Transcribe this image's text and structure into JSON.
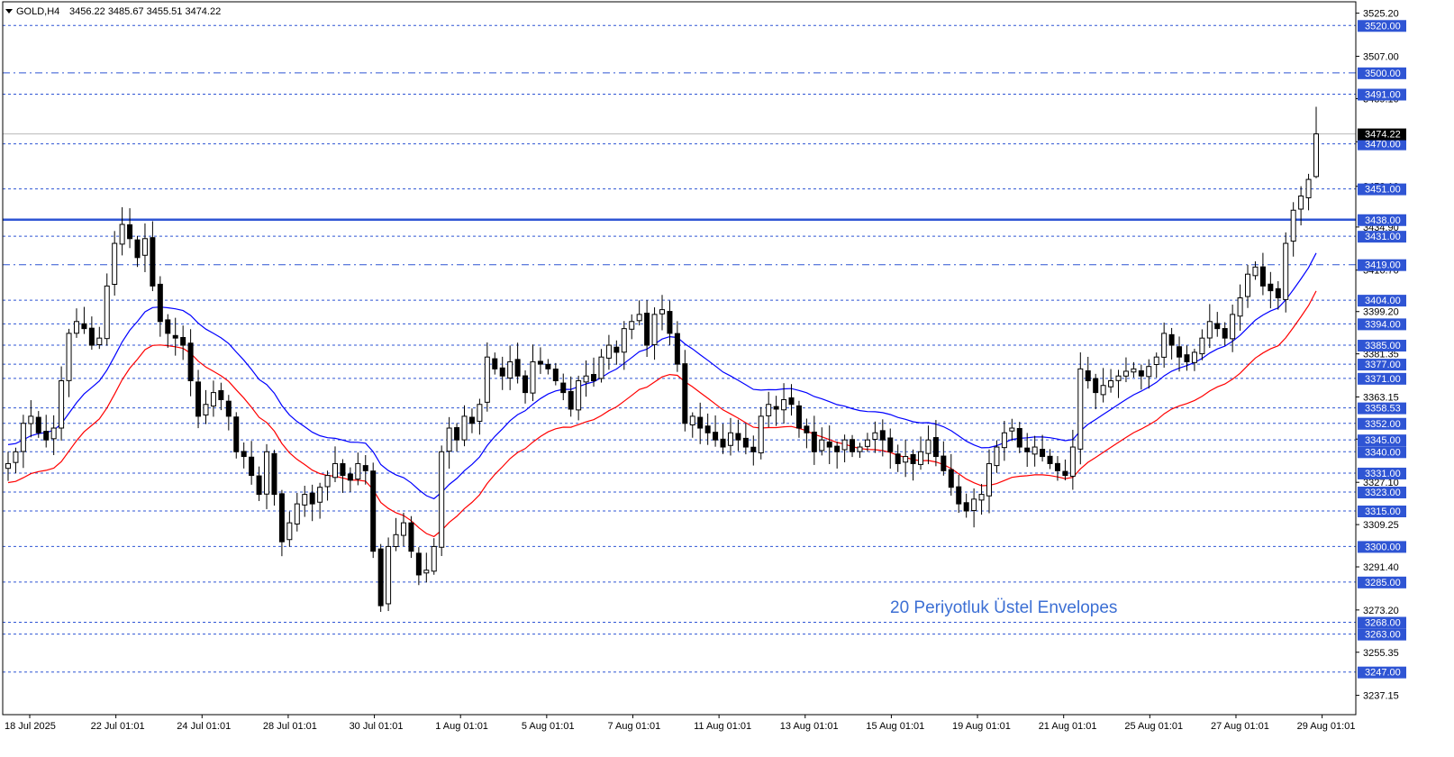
{
  "header": {
    "symbol_label": "GOLD,H4",
    "ohlc_label": "3456.22 3485.67 3455.51 3474.22"
  },
  "annotation": {
    "text": "20 Periyotluk Üstel Envelopes",
    "color": "#3c6fd4"
  },
  "colors": {
    "level_line": "#2f55d4",
    "upper_envelope": "#0000ff",
    "lower_envelope": "#ff0000",
    "candle": "#000000",
    "tag_bg": "#2f55d4",
    "price_tag_bg": "#000000"
  },
  "chart_data": {
    "type": "candlestick",
    "symbol": "GOLD",
    "timeframe": "H4",
    "ylim": [
      3229,
      3530
    ],
    "current_price": 3474.22,
    "y_axis_ticks": [
      "3525.20",
      "3507.00",
      "3489.10",
      "3470.90",
      "3452.10",
      "3434.90",
      "3416.70",
      "3399.20",
      "3381.35",
      "3363.15",
      "3345.35",
      "3327.10",
      "3309.25",
      "3291.40",
      "3273.20",
      "3255.35",
      "3237.15"
    ],
    "x_axis_labels": [
      "18 Jul 2025",
      "22 Jul 01:01",
      "24 Jul 01:01",
      "28 Jul 01:01",
      "30 Jul 01:01",
      "1 Aug 01:01",
      "5 Aug 01:01",
      "7 Aug 01:01",
      "11 Aug 01:01",
      "13 Aug 01:01",
      "15 Aug 01:01",
      "19 Aug 01:01",
      "21 Aug 01:01",
      "25 Aug 01:01",
      "27 Aug 01:01",
      "29 Aug 01:01"
    ],
    "levels": [
      {
        "label": "3520.00",
        "value": 3520.0,
        "style": "dashed"
      },
      {
        "label": "3500.00",
        "value": 3500.0,
        "style": "dashdot"
      },
      {
        "label": "3491.00",
        "value": 3491.0,
        "style": "dashed"
      },
      {
        "label": "3470.00",
        "value": 3470.0,
        "style": "dashed"
      },
      {
        "label": "3451.00",
        "value": 3451.0,
        "style": "dashed"
      },
      {
        "label": "3438.00",
        "value": 3438.0,
        "style": "solid"
      },
      {
        "label": "3431.00",
        "value": 3431.0,
        "style": "dashed"
      },
      {
        "label": "3419.00",
        "value": 3419.0,
        "style": "dashdot"
      },
      {
        "label": "3404.00",
        "value": 3404.0,
        "style": "dashed"
      },
      {
        "label": "3394.00",
        "value": 3394.0,
        "style": "dashed"
      },
      {
        "label": "3385.00",
        "value": 3385.0,
        "style": "dashed"
      },
      {
        "label": "3377.00",
        "value": 3377.0,
        "style": "dashed"
      },
      {
        "label": "3371.00",
        "value": 3371.0,
        "style": "dashed"
      },
      {
        "label": "3358.53",
        "value": 3358.53,
        "style": "dashed"
      },
      {
        "label": "3352.00",
        "value": 3352.0,
        "style": "dashed"
      },
      {
        "label": "3345.00",
        "value": 3345.0,
        "style": "dashed"
      },
      {
        "label": "3340.00",
        "value": 3340.0,
        "style": "dashed"
      },
      {
        "label": "3331.00",
        "value": 3331.0,
        "style": "dashed"
      },
      {
        "label": "3323.00",
        "value": 3323.0,
        "style": "dashed"
      },
      {
        "label": "3315.00",
        "value": 3315.0,
        "style": "dashed"
      },
      {
        "label": "3300.00",
        "value": 3300.0,
        "style": "dashed"
      },
      {
        "label": "3285.00",
        "value": 3285.0,
        "style": "dashed"
      },
      {
        "label": "3268.00",
        "value": 3268.0,
        "style": "dashed"
      },
      {
        "label": "3263.00",
        "value": 3263.0,
        "style": "dashed"
      },
      {
        "label": "3247.00",
        "value": 3247.0,
        "style": "dashed"
      }
    ],
    "closes": [
      3335,
      3340,
      3352,
      3355,
      3348,
      3345,
      3350,
      3370,
      3390,
      3395,
      3392,
      3385,
      3388,
      3410,
      3428,
      3436,
      3430,
      3422,
      3430,
      3410,
      3395,
      3390,
      3388,
      3385,
      3370,
      3355,
      3360,
      3365,
      3362,
      3355,
      3340,
      3338,
      3330,
      3322,
      3340,
      3322,
      3302,
      3310,
      3318,
      3322,
      3318,
      3325,
      3330,
      3335,
      3330,
      3328,
      3335,
      3332,
      3298,
      3275,
      3300,
      3305,
      3310,
      3298,
      3288,
      3290,
      3300,
      3340,
      3350,
      3345,
      3355,
      3352,
      3360,
      3380,
      3375,
      3372,
      3378,
      3372,
      3365,
      3378,
      3377,
      3375,
      3370,
      3365,
      3358,
      3370,
      3372,
      3370,
      3380,
      3385,
      3382,
      3392,
      3395,
      3398,
      3385,
      3398,
      3400,
      3390,
      3377,
      3352,
      3355,
      3350,
      3348,
      3345,
      3342,
      3348,
      3345,
      3342,
      3340,
      3355,
      3360,
      3358,
      3362,
      3360,
      3350,
      3348,
      3340,
      3345,
      3342,
      3340,
      3345,
      3340,
      3342,
      3345,
      3348,
      3345,
      3340,
      3335,
      3338,
      3335,
      3340,
      3345,
      3338,
      3332,
      3325,
      3318,
      3315,
      3320,
      3322,
      3335,
      3342,
      3348,
      3350,
      3342,
      3340,
      3342,
      3338,
      3335,
      3332,
      3330,
      3342,
      3375,
      3370,
      3365,
      3368,
      3370,
      3372,
      3374,
      3375,
      3372,
      3376,
      3380,
      3390,
      3385,
      3380,
      3378,
      3382,
      3388,
      3395,
      3392,
      3388,
      3398,
      3405,
      3415,
      3418,
      3410,
      3408,
      3405,
      3428,
      3442,
      3448,
      3455,
      3474.22
    ]
  }
}
